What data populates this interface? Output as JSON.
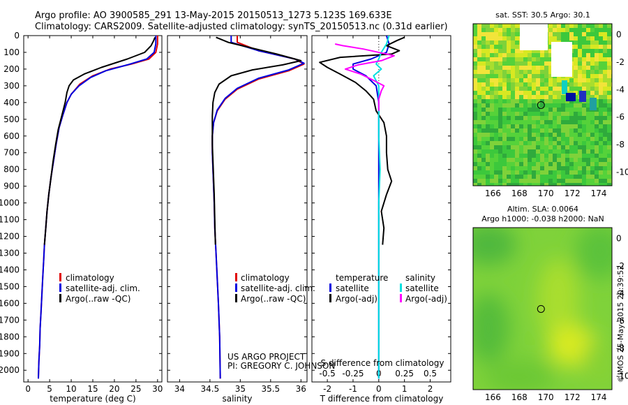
{
  "header": {
    "line1": "Argo profile: AO 3900585_291 13-May-2015 20150513_1273 5.123S 169.633E",
    "line2": "Climatology: CARS2009. Satellite-adjusted climatology: synTS_20150513.nc (0.31d earlier)"
  },
  "footer": {
    "project": "US ARGO PROJECT",
    "pi": "PI: GREGORY C. JOHNSON",
    "imos": "©IMOS 25-May-2015 20:39:52"
  },
  "colors": {
    "climatology": "#e00000",
    "satellite": "#0000e0",
    "argo": "#000000",
    "sal_satellite": "#00e0e0",
    "sal_argo": "#ff00ff"
  },
  "chart_data": [
    {
      "id": "temperature",
      "type": "line",
      "xlabel": "temperature (deg C)",
      "ylabel": "",
      "xlim": [
        -1,
        31
      ],
      "ylim": [
        2070,
        0
      ],
      "xticks": [
        0,
        5,
        10,
        15,
        20,
        25,
        30
      ],
      "yticks": [
        0,
        100,
        200,
        300,
        400,
        500,
        600,
        700,
        800,
        900,
        1000,
        1100,
        1200,
        1300,
        1400,
        1500,
        1600,
        1700,
        1800,
        1900,
        2000
      ],
      "legend": [
        "climatology",
        "satellite-adj. clim.",
        "Argo(..raw -QC)"
      ],
      "series": [
        {
          "name": "climatology",
          "color": "#e00000",
          "points": [
            [
              30,
              0
            ],
            [
              30,
              50
            ],
            [
              29.6,
              100
            ],
            [
              28,
              140
            ],
            [
              24,
              170
            ],
            [
              19,
              200
            ],
            [
              15,
              240
            ],
            [
              12,
              290
            ],
            [
              10,
              350
            ],
            [
              9,
              400
            ],
            [
              8,
              480
            ],
            [
              7.2,
              550
            ],
            [
              6.5,
              650
            ],
            [
              5.9,
              750
            ],
            [
              5.3,
              850
            ],
            [
              4.8,
              950
            ],
            [
              4.4,
              1050
            ],
            [
              4.1,
              1150
            ],
            [
              3.8,
              1250
            ],
            [
              3.6,
              1350
            ],
            [
              3.4,
              1450
            ],
            [
              3.2,
              1550
            ],
            [
              3.0,
              1650
            ],
            [
              2.8,
              1750
            ],
            [
              2.7,
              1850
            ],
            [
              2.5,
              1950
            ],
            [
              2.4,
              2050
            ]
          ]
        },
        {
          "name": "satellite-adj. clim.",
          "color": "#0000e0",
          "points": [
            [
              29.6,
              0
            ],
            [
              29.6,
              50
            ],
            [
              29.2,
              100
            ],
            [
              27.5,
              140
            ],
            [
              23,
              175
            ],
            [
              18,
              210
            ],
            [
              14.5,
              250
            ],
            [
              11.8,
              300
            ],
            [
              10,
              350
            ],
            [
              9,
              400
            ],
            [
              8,
              480
            ],
            [
              7.2,
              550
            ],
            [
              6.5,
              650
            ],
            [
              5.9,
              750
            ],
            [
              5.3,
              850
            ],
            [
              4.8,
              950
            ],
            [
              4.4,
              1050
            ],
            [
              4.1,
              1150
            ],
            [
              3.8,
              1250
            ],
            [
              3.6,
              1350
            ],
            [
              3.4,
              1450
            ],
            [
              3.2,
              1550
            ],
            [
              3.0,
              1650
            ],
            [
              2.8,
              1750
            ],
            [
              2.7,
              1850
            ],
            [
              2.5,
              1950
            ],
            [
              2.4,
              2050
            ]
          ]
        },
        {
          "name": "Argo(..raw -QC)",
          "color": "#000000",
          "points": [
            [
              29.4,
              10
            ],
            [
              29.1,
              30
            ],
            [
              28.5,
              60
            ],
            [
              27,
              100
            ],
            [
              23,
              140
            ],
            [
              17,
              190
            ],
            [
              13,
              230
            ],
            [
              10.5,
              265
            ],
            [
              9.5,
              300
            ],
            [
              9,
              340
            ],
            [
              8.6,
              400
            ],
            [
              7.8,
              480
            ],
            [
              7,
              560
            ],
            [
              6.4,
              650
            ],
            [
              5.8,
              750
            ],
            [
              5.3,
              850
            ],
            [
              4.8,
              950
            ],
            [
              4.4,
              1050
            ],
            [
              4.1,
              1150
            ],
            [
              3.8,
              1250
            ]
          ]
        }
      ]
    },
    {
      "id": "salinity",
      "type": "line",
      "xlabel": "salinity",
      "ylabel": "",
      "xlim": [
        33.8,
        36.1
      ],
      "ylim": [
        2070,
        0
      ],
      "xticks": [
        34,
        34.5,
        35,
        35.5,
        36
      ],
      "legend": [
        "climatology",
        "satellite-adj. clim.",
        "Argo(..raw -QC)"
      ],
      "series": [
        {
          "name": "climatology",
          "color": "#e00000",
          "points": [
            [
              34.95,
              0
            ],
            [
              34.95,
              40
            ],
            [
              35.3,
              90
            ],
            [
              35.9,
              140
            ],
            [
              36.05,
              170
            ],
            [
              35.8,
              210
            ],
            [
              35.3,
              260
            ],
            [
              34.95,
              320
            ],
            [
              34.75,
              380
            ],
            [
              34.62,
              450
            ],
            [
              34.56,
              520
            ],
            [
              34.54,
              600
            ],
            [
              34.54,
              700
            ],
            [
              34.55,
              800
            ],
            [
              34.56,
              900
            ],
            [
              34.57,
              1000
            ],
            [
              34.58,
              1150
            ],
            [
              34.6,
              1300
            ],
            [
              34.62,
              1450
            ],
            [
              34.64,
              1600
            ],
            [
              34.66,
              1800
            ],
            [
              34.67,
              2050
            ]
          ]
        },
        {
          "name": "satellite-adj. clim.",
          "color": "#0000e0",
          "points": [
            [
              34.85,
              0
            ],
            [
              34.85,
              40
            ],
            [
              35.3,
              90
            ],
            [
              35.9,
              140
            ],
            [
              36.05,
              165
            ],
            [
              35.8,
              205
            ],
            [
              35.3,
              255
            ],
            [
              34.95,
              315
            ],
            [
              34.75,
              375
            ],
            [
              34.62,
              445
            ],
            [
              34.56,
              520
            ],
            [
              34.54,
              600
            ],
            [
              34.54,
              700
            ],
            [
              34.55,
              800
            ],
            [
              34.56,
              900
            ],
            [
              34.57,
              1000
            ],
            [
              34.58,
              1150
            ],
            [
              34.6,
              1300
            ],
            [
              34.62,
              1450
            ],
            [
              34.64,
              1600
            ],
            [
              34.66,
              1800
            ],
            [
              34.67,
              2050
            ]
          ]
        },
        {
          "name": "Argo(..raw -QC)",
          "color": "#000000",
          "points": [
            [
              34.6,
              10
            ],
            [
              34.8,
              40
            ],
            [
              35.2,
              75
            ],
            [
              35.6,
              110
            ],
            [
              36.0,
              150
            ],
            [
              35.7,
              175
            ],
            [
              35.2,
              205
            ],
            [
              34.85,
              240
            ],
            [
              34.65,
              290
            ],
            [
              34.58,
              340
            ],
            [
              34.55,
              400
            ],
            [
              34.54,
              480
            ],
            [
              34.54,
              560
            ],
            [
              34.54,
              650
            ],
            [
              34.55,
              750
            ],
            [
              34.56,
              850
            ],
            [
              34.57,
              950
            ],
            [
              34.58,
              1100
            ],
            [
              34.59,
              1250
            ]
          ]
        }
      ]
    },
    {
      "id": "difference",
      "type": "line",
      "xlabel": "T difference from climatology",
      "xlabel2": "S difference from climatology",
      "xlim": [
        -2.6,
        2.8
      ],
      "ylim": [
        2070,
        0
      ],
      "xticks": [
        -2,
        -1,
        0,
        1,
        2
      ],
      "xticks_top": [
        -0.5,
        -0.25,
        0,
        0.25,
        0.5
      ],
      "legend_left_title": "temperature",
      "legend_right_title": "salinity",
      "legend_left": [
        "satellite",
        "Argo(-adj)"
      ],
      "legend_right": [
        "satellite",
        "Argo(-adj)"
      ],
      "series": [
        {
          "name": "temperature satellite",
          "color": "#0000e0",
          "points": [
            [
              0.3,
              0
            ],
            [
              0.4,
              50
            ],
            [
              0.3,
              100
            ],
            [
              -0.3,
              140
            ],
            [
              -1.0,
              170
            ],
            [
              -1.0,
              200
            ],
            [
              -0.5,
              240
            ],
            [
              -0.1,
              300
            ],
            [
              0,
              400
            ],
            [
              0,
              500
            ],
            [
              0,
              700
            ],
            [
              0,
              900
            ],
            [
              0,
              1100
            ],
            [
              0,
              1300
            ],
            [
              0,
              1500
            ],
            [
              0,
              1700
            ],
            [
              0,
              1900
            ],
            [
              0,
              2050
            ]
          ]
        },
        {
          "name": "temperature Argo(-adj)",
          "color": "#000000",
          "points": [
            [
              1.0,
              10
            ],
            [
              0.7,
              30
            ],
            [
              0.3,
              60
            ],
            [
              0.8,
              90
            ],
            [
              0.5,
              110
            ],
            [
              -1.5,
              130
            ],
            [
              -2.3,
              160
            ],
            [
              -2.0,
              190
            ],
            [
              -1.5,
              230
            ],
            [
              -0.9,
              280
            ],
            [
              -0.5,
              330
            ],
            [
              -0.2,
              380
            ],
            [
              -0.1,
              450
            ],
            [
              0.2,
              520
            ],
            [
              0.3,
              600
            ],
            [
              0.3,
              700
            ],
            [
              0.35,
              800
            ],
            [
              0.5,
              870
            ],
            [
              0.3,
              950
            ],
            [
              0.1,
              1050
            ],
            [
              0.2,
              1150
            ],
            [
              0.15,
              1250
            ]
          ]
        },
        {
          "name": "salinity satellite",
          "color": "#00e0e0",
          "points": [
            [
              0.4,
              0
            ],
            [
              0.3,
              50
            ],
            [
              0.1,
              100
            ],
            [
              0.0,
              140
            ],
            [
              -0.1,
              170
            ],
            [
              0.1,
              200
            ],
            [
              -0.2,
              240
            ],
            [
              0.0,
              300
            ],
            [
              0.0,
              400
            ],
            [
              0.0,
              600
            ],
            [
              0.05,
              800
            ],
            [
              0.0,
              1000
            ],
            [
              0.0,
              1200
            ],
            [
              0.0,
              1400
            ],
            [
              0.0,
              1600
            ],
            [
              0.0,
              1800
            ],
            [
              0.0,
              2050
            ]
          ]
        },
        {
          "name": "salinity Argo(-adj)",
          "color": "#ff00ff",
          "points": [
            [
              -1.7,
              50
            ],
            [
              -1.4,
              60
            ],
            [
              -0.6,
              80
            ],
            [
              0.6,
              120
            ],
            [
              0.1,
              150
            ],
            [
              -0.8,
              175
            ],
            [
              -1.3,
              200
            ],
            [
              -0.7,
              230
            ],
            [
              -0.3,
              260
            ],
            [
              0.2,
              300
            ],
            [
              0.1,
              330
            ],
            [
              0.0,
              380
            ],
            [
              0.0,
              450
            ]
          ]
        }
      ]
    },
    {
      "id": "sst-map",
      "type": "heatmap",
      "title": "sat. SST: 30.5 Argo: 30.1",
      "xlim": [
        164.5,
        175
      ],
      "ylim": [
        -11,
        0.8
      ],
      "xticks": [
        166,
        168,
        170,
        172,
        174
      ],
      "yticks": [
        0,
        -2,
        -4,
        -6,
        -8,
        -10
      ],
      "marker": [
        169.633,
        -5.123
      ]
    },
    {
      "id": "sla-map",
      "type": "heatmap",
      "title": "Altim. SLA: 0.0064",
      "subtitle": "Argo h1000: -0.038 h2000: NaN",
      "xlim": [
        164.5,
        175
      ],
      "ylim": [
        -11,
        0.8
      ],
      "xticks": [
        166,
        168,
        170,
        172,
        174
      ],
      "yticks": [
        0,
        -2,
        -4,
        -6,
        -8,
        -10
      ],
      "marker": [
        169.633,
        -5.123
      ]
    }
  ]
}
